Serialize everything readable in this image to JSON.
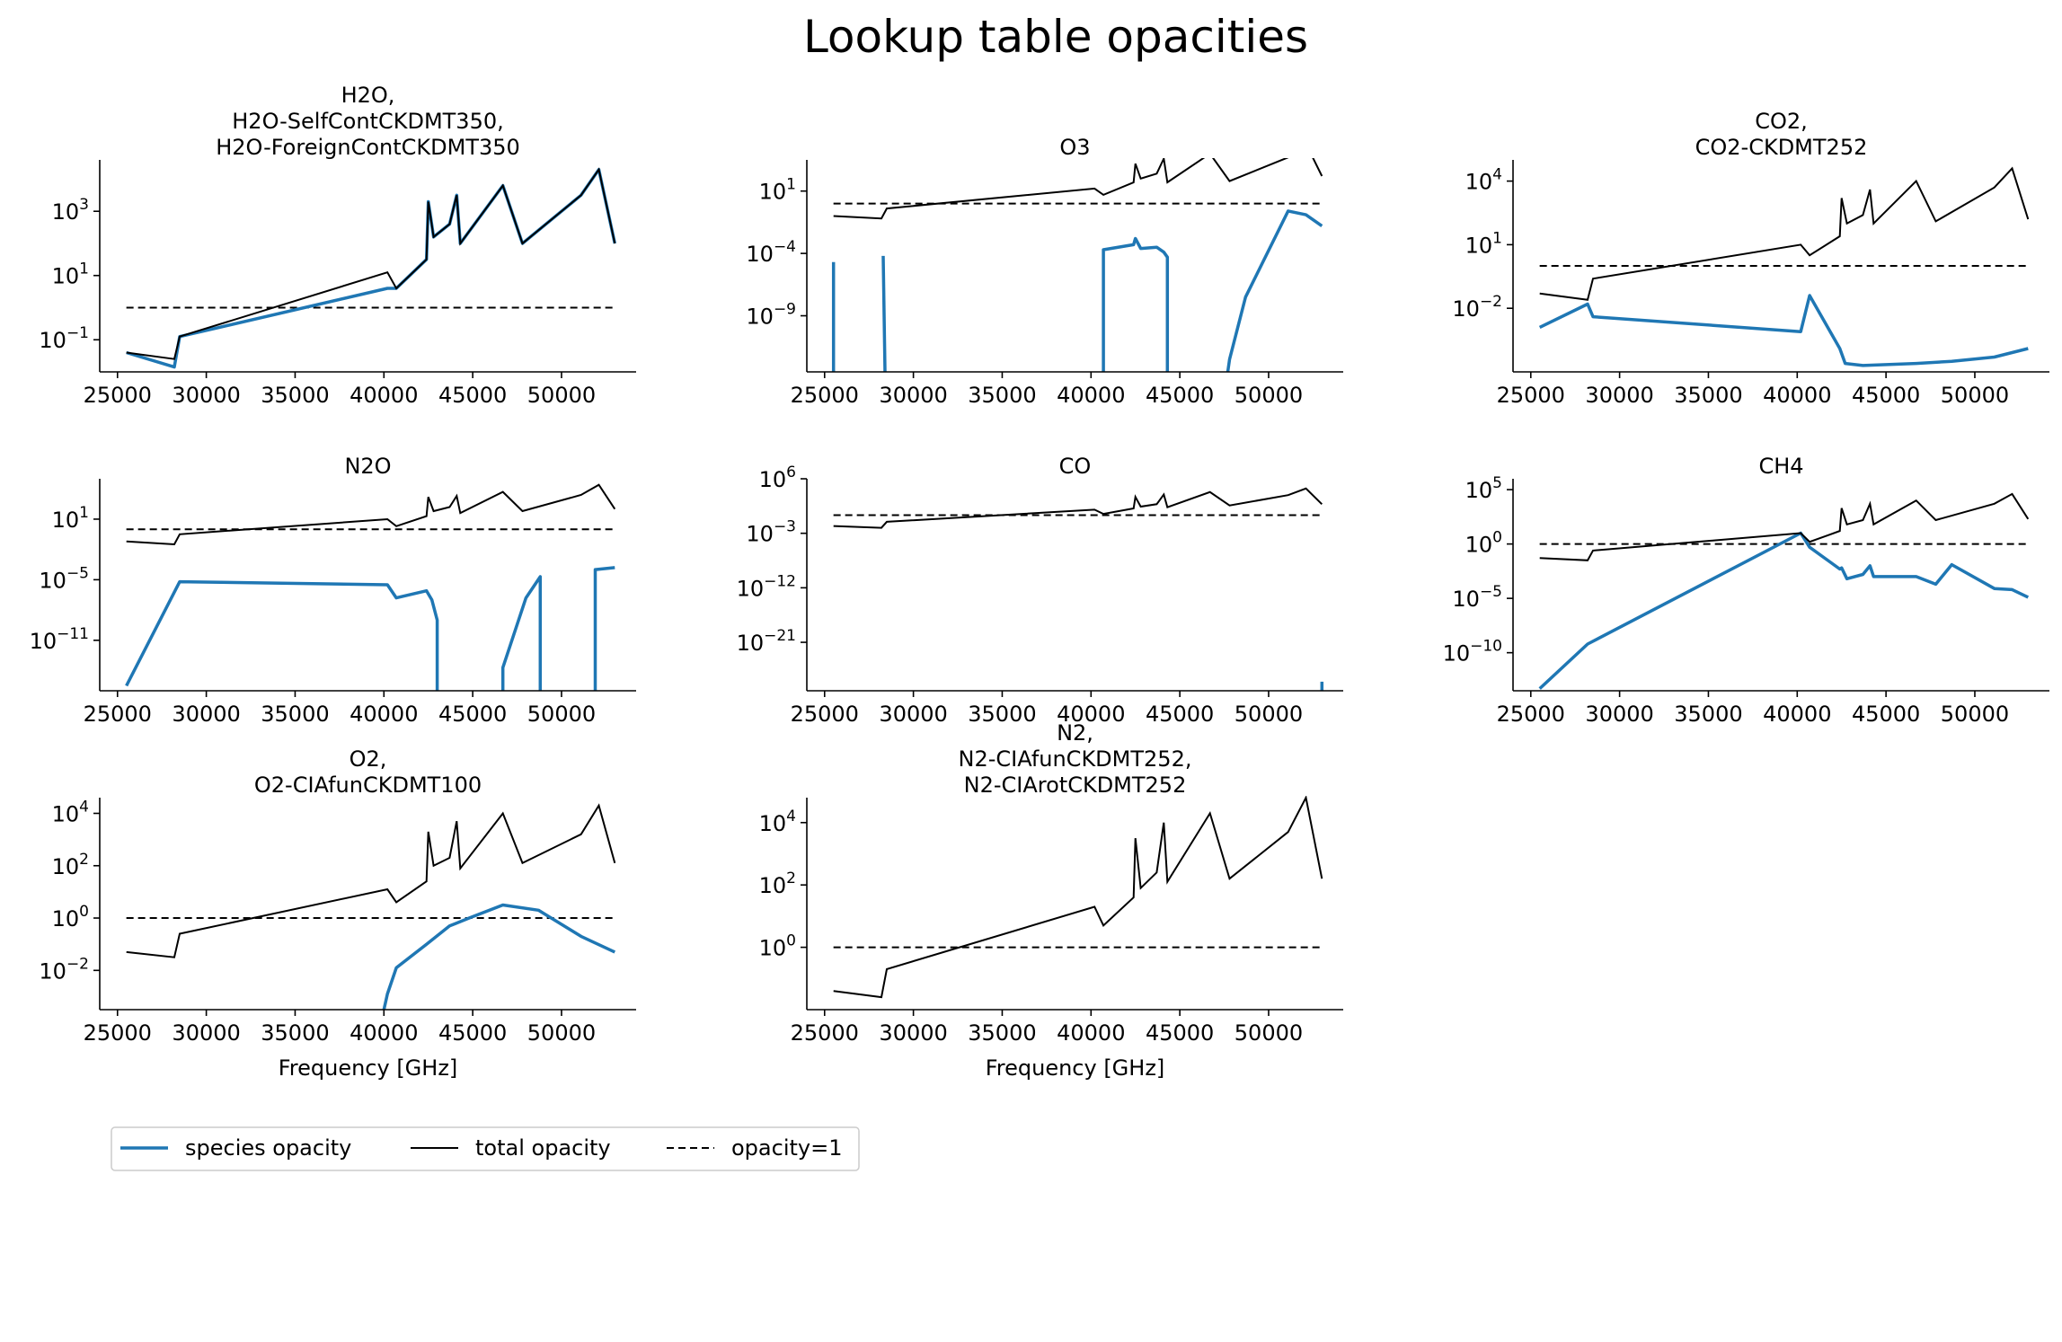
{
  "figure": {
    "title": "Lookup table opacities"
  },
  "legend": {
    "placement": "below-left",
    "entries": [
      {
        "label": "species opacity",
        "color": "#1f77b4",
        "style": "solid-thick"
      },
      {
        "label": "total opacity",
        "color": "#000000",
        "style": "solid"
      },
      {
        "label": "opacity=1",
        "color": "#000000",
        "style": "dashed"
      }
    ]
  },
  "colors": {
    "species": "#1f77b4",
    "total": "#000000",
    "reference": "#000000"
  },
  "chart_data": [
    {
      "type": "line",
      "title_lines": [
        "H2O,",
        "H2O-SelfContCKDMT350,",
        "H2O-ForeignContCKDMT350"
      ],
      "xlabel": "",
      "yscale": "log",
      "xlim": [
        24000,
        54200
      ],
      "ylim": [
        -2.0,
        4.6
      ],
      "xticks": [
        25000,
        30000,
        35000,
        40000,
        45000,
        50000
      ],
      "yticks": [
        {
          "e": -1,
          "label": "10^-1"
        },
        {
          "e": 1,
          "label": "10^1"
        },
        {
          "e": 3,
          "label": "10^3"
        }
      ],
      "total_opacity_log10": [
        [
          25500,
          -1.4
        ],
        [
          28200,
          -1.6
        ],
        [
          28500,
          -0.9
        ],
        [
          40200,
          1.1
        ],
        [
          40700,
          0.6
        ],
        [
          42400,
          1.5
        ],
        [
          42500,
          3.3
        ],
        [
          42800,
          2.2
        ],
        [
          43700,
          2.6
        ],
        [
          44100,
          3.5
        ],
        [
          44300,
          2.0
        ],
        [
          46700,
          3.8
        ],
        [
          47800,
          2.0
        ],
        [
          51100,
          3.5
        ],
        [
          52100,
          4.3
        ],
        [
          53000,
          2.0
        ]
      ],
      "species_opacity_log10": [
        [
          25500,
          -1.4
        ],
        [
          28200,
          -1.85
        ],
        [
          28500,
          -0.9
        ],
        [
          40200,
          0.6
        ],
        [
          40700,
          0.6
        ],
        [
          42400,
          1.5
        ],
        [
          42500,
          3.3
        ],
        [
          42800,
          2.2
        ],
        [
          43700,
          2.6
        ],
        [
          44100,
          3.5
        ],
        [
          44300,
          2.0
        ],
        [
          46700,
          3.8
        ],
        [
          47800,
          2.0
        ],
        [
          51100,
          3.5
        ],
        [
          52100,
          4.3
        ],
        [
          53000,
          2.0
        ]
      ],
      "reference_opacity": 1
    },
    {
      "type": "line",
      "title_lines": [
        "O3"
      ],
      "xlabel": "",
      "yscale": "log",
      "xlim": [
        24000,
        54200
      ],
      "ylim": [
        -13.5,
        3.5
      ],
      "xticks": [
        25000,
        30000,
        35000,
        40000,
        45000,
        50000
      ],
      "yticks": [
        {
          "e": -9,
          "label": "10^-9"
        },
        {
          "e": -4,
          "label": "10^-4"
        },
        {
          "e": 1,
          "label": "10^1"
        }
      ],
      "total_opacity_log10": [
        [
          25500,
          -1.0
        ],
        [
          28200,
          -1.2
        ],
        [
          28500,
          -0.4
        ],
        [
          40200,
          1.2
        ],
        [
          40700,
          0.7
        ],
        [
          42400,
          1.7
        ],
        [
          42500,
          3.2
        ],
        [
          42800,
          2.0
        ],
        [
          43700,
          2.4
        ],
        [
          44100,
          3.6
        ],
        [
          44300,
          1.7
        ],
        [
          46700,
          4.0
        ],
        [
          47800,
          1.8
        ],
        [
          51100,
          3.7
        ],
        [
          52100,
          4.8
        ],
        [
          53000,
          2.2
        ]
      ],
      "species_opacity_log10_segments": [
        [
          [
            25500,
            -13.5
          ],
          [
            25500,
            -4.7
          ]
        ],
        [
          [
            28300,
            -4.2
          ],
          [
            28400,
            -13.5
          ]
        ],
        [
          [
            40700,
            -13.5
          ],
          [
            40700,
            -3.7
          ],
          [
            42400,
            -3.3
          ],
          [
            42500,
            -2.8
          ],
          [
            42800,
            -3.6
          ],
          [
            43700,
            -3.5
          ],
          [
            44100,
            -3.9
          ],
          [
            44300,
            -4.3
          ],
          [
            44300,
            -13.5
          ]
        ],
        [
          [
            47700,
            -13.5
          ],
          [
            47800,
            -12.5
          ],
          [
            48700,
            -7.5
          ],
          [
            51100,
            -0.6
          ],
          [
            52100,
            -0.9
          ],
          [
            53000,
            -1.8
          ]
        ]
      ],
      "reference_opacity": 1
    },
    {
      "type": "line",
      "title_lines": [
        "CO2,",
        "CO2-CKDMT252"
      ],
      "xlabel": "",
      "yscale": "log",
      "xlim": [
        24000,
        54200
      ],
      "ylim": [
        -5.0,
        5.0
      ],
      "xticks": [
        25000,
        30000,
        35000,
        40000,
        45000,
        50000
      ],
      "yticks": [
        {
          "e": -2,
          "label": "10^-2"
        },
        {
          "e": 1,
          "label": "10^1"
        },
        {
          "e": 4,
          "label": "10^4"
        }
      ],
      "total_opacity_log10": [
        [
          25500,
          -1.3
        ],
        [
          28200,
          -1.6
        ],
        [
          28500,
          -0.6
        ],
        [
          40200,
          1.0
        ],
        [
          40700,
          0.5
        ],
        [
          42400,
          1.4
        ],
        [
          42500,
          3.2
        ],
        [
          42800,
          2.0
        ],
        [
          43700,
          2.4
        ],
        [
          44100,
          3.6
        ],
        [
          44300,
          2.0
        ],
        [
          46700,
          4.0
        ],
        [
          47800,
          2.1
        ],
        [
          51100,
          3.7
        ],
        [
          52100,
          4.6
        ],
        [
          53000,
          2.2
        ]
      ],
      "species_opacity_log10": [
        [
          25500,
          -2.9
        ],
        [
          28200,
          -1.8
        ],
        [
          28500,
          -2.4
        ],
        [
          40200,
          -3.1
        ],
        [
          40700,
          -1.4
        ],
        [
          42400,
          -3.9
        ],
        [
          42700,
          -4.6
        ],
        [
          43700,
          -4.7
        ],
        [
          46700,
          -4.6
        ],
        [
          48700,
          -4.5
        ],
        [
          51100,
          -4.3
        ],
        [
          53000,
          -3.9
        ]
      ],
      "reference_opacity": 1
    },
    {
      "type": "line",
      "title_lines": [
        "N2O"
      ],
      "xlabel": "",
      "yscale": "log",
      "xlim": [
        24000,
        54200
      ],
      "ylim": [
        -16.0,
        5.0
      ],
      "xticks": [
        25000,
        30000,
        35000,
        40000,
        45000,
        50000
      ],
      "yticks": [
        {
          "e": -11,
          "label": "10^-11"
        },
        {
          "e": -5,
          "label": "10^-5"
        },
        {
          "e": 1,
          "label": "10^1"
        }
      ],
      "total_opacity_log10": [
        [
          25500,
          -1.2
        ],
        [
          28200,
          -1.5
        ],
        [
          28500,
          -0.5
        ],
        [
          40200,
          1.0
        ],
        [
          40700,
          0.3
        ],
        [
          42400,
          1.3
        ],
        [
          42500,
          3.2
        ],
        [
          42800,
          1.8
        ],
        [
          43700,
          2.2
        ],
        [
          44100,
          3.3
        ],
        [
          44300,
          1.6
        ],
        [
          46700,
          3.7
        ],
        [
          47800,
          1.8
        ],
        [
          51100,
          3.4
        ],
        [
          52100,
          4.4
        ],
        [
          53000,
          2.0
        ]
      ],
      "species_opacity_log10_segments": [
        [
          [
            25500,
            -15.5
          ],
          [
            28500,
            -5.2
          ],
          [
            40200,
            -5.5
          ],
          [
            40700,
            -6.8
          ],
          [
            42400,
            -6.1
          ],
          [
            42700,
            -7.0
          ],
          [
            43000,
            -9.0
          ],
          [
            43000,
            -16.0
          ]
        ],
        [
          [
            46700,
            -16.0
          ],
          [
            46700,
            -13.7
          ],
          [
            48000,
            -6.8
          ],
          [
            48800,
            -4.7
          ],
          [
            48800,
            -16.0
          ]
        ],
        [
          [
            51900,
            -16.0
          ],
          [
            51900,
            -4.0
          ],
          [
            53000,
            -3.8
          ]
        ]
      ],
      "reference_opacity": 1
    },
    {
      "type": "line",
      "title_lines": [
        "CO"
      ],
      "xlabel": "",
      "yscale": "log",
      "xlim": [
        24000,
        54200
      ],
      "ylim": [
        -29.0,
        6.0
      ],
      "xticks": [
        25000,
        30000,
        35000,
        40000,
        45000,
        50000
      ],
      "yticks": [
        {
          "e": -21,
          "label": "10^-21"
        },
        {
          "e": -12,
          "label": "10^-12"
        },
        {
          "e": -3,
          "label": "10^-3"
        },
        {
          "e": 6,
          "label": "10^6"
        }
      ],
      "total_opacity_log10": [
        [
          25500,
          -1.8
        ],
        [
          28200,
          -2.1
        ],
        [
          28500,
          -1.1
        ],
        [
          40200,
          0.9
        ],
        [
          40700,
          0.2
        ],
        [
          42400,
          1.1
        ],
        [
          42500,
          3.0
        ],
        [
          42800,
          1.4
        ],
        [
          43700,
          1.8
        ],
        [
          44100,
          3.4
        ],
        [
          44300,
          1.3
        ],
        [
          46700,
          3.8
        ],
        [
          47800,
          1.6
        ],
        [
          51100,
          3.3
        ],
        [
          52100,
          4.4
        ],
        [
          53000,
          1.8
        ]
      ],
      "species_opacity_log10_segments": [
        [
          [
            53000,
            -29.0
          ],
          [
            53000,
            -27.5
          ]
        ]
      ],
      "reference_opacity": 1
    },
    {
      "type": "line",
      "title_lines": [
        "CH4"
      ],
      "xlabel": "",
      "yscale": "log",
      "xlim": [
        24000,
        54200
      ],
      "ylim": [
        -13.5,
        6.0
      ],
      "xticks": [
        25000,
        30000,
        35000,
        40000,
        45000,
        50000
      ],
      "yticks": [
        {
          "e": -10,
          "label": "10^-10"
        },
        {
          "e": -5,
          "label": "10^-5"
        },
        {
          "e": 0,
          "label": "10^0"
        },
        {
          "e": 5,
          "label": "10^5"
        }
      ],
      "total_opacity_log10": [
        [
          25500,
          -1.3
        ],
        [
          28200,
          -1.5
        ],
        [
          28500,
          -0.6
        ],
        [
          40200,
          1.0
        ],
        [
          40700,
          0.2
        ],
        [
          42400,
          1.2
        ],
        [
          42500,
          3.3
        ],
        [
          42800,
          1.8
        ],
        [
          43700,
          2.2
        ],
        [
          44100,
          3.7
        ],
        [
          44300,
          1.8
        ],
        [
          46700,
          4.0
        ],
        [
          47800,
          2.2
        ],
        [
          51100,
          3.7
        ],
        [
          52100,
          4.6
        ],
        [
          53000,
          2.3
        ]
      ],
      "species_opacity_log10": [
        [
          25500,
          -13.3
        ],
        [
          28200,
          -9.2
        ],
        [
          40200,
          1.0
        ],
        [
          40700,
          -0.3
        ],
        [
          42400,
          -2.3
        ],
        [
          42500,
          -2.2
        ],
        [
          42800,
          -3.2
        ],
        [
          43700,
          -2.8
        ],
        [
          44100,
          -2.0
        ],
        [
          44300,
          -3.0
        ],
        [
          46700,
          -3.0
        ],
        [
          47800,
          -3.7
        ],
        [
          48700,
          -1.9
        ],
        [
          51100,
          -4.1
        ],
        [
          52100,
          -4.2
        ],
        [
          53000,
          -4.9
        ]
      ],
      "reference_opacity": 1
    },
    {
      "type": "line",
      "title_lines": [
        "O2,",
        "O2-CIAfunCKDMT100"
      ],
      "xlabel": "Frequency [GHz]",
      "yscale": "log",
      "xlim": [
        24000,
        54200
      ],
      "ylim": [
        -3.5,
        4.6
      ],
      "xticks": [
        25000,
        30000,
        35000,
        40000,
        45000,
        50000
      ],
      "yticks": [
        {
          "e": -2,
          "label": "10^-2"
        },
        {
          "e": 0,
          "label": "10^0"
        },
        {
          "e": 2,
          "label": "10^2"
        },
        {
          "e": 4,
          "label": "10^4"
        }
      ],
      "total_opacity_log10": [
        [
          25500,
          -1.3
        ],
        [
          28200,
          -1.5
        ],
        [
          28500,
          -0.6
        ],
        [
          40200,
          1.1
        ],
        [
          40700,
          0.6
        ],
        [
          42400,
          1.4
        ],
        [
          42500,
          3.3
        ],
        [
          42800,
          2.0
        ],
        [
          43700,
          2.3
        ],
        [
          44100,
          3.7
        ],
        [
          44300,
          1.9
        ],
        [
          46700,
          4.0
        ],
        [
          47800,
          2.1
        ],
        [
          51100,
          3.2
        ],
        [
          52100,
          4.3
        ],
        [
          53000,
          2.1
        ]
      ],
      "species_opacity_log10_segments": [
        [
          [
            40000,
            -3.5
          ],
          [
            40200,
            -2.9
          ],
          [
            40700,
            -1.9
          ],
          [
            42400,
            -1.0
          ],
          [
            43700,
            -0.3
          ],
          [
            44800,
            0.0
          ],
          [
            46700,
            0.5
          ],
          [
            48700,
            0.3
          ],
          [
            51100,
            -0.7
          ],
          [
            53000,
            -1.3
          ]
        ]
      ],
      "reference_opacity": 1
    },
    {
      "type": "line",
      "title_lines": [
        "N2,",
        "N2-CIAfunCKDMT252,",
        "N2-CIArotCKDMT252"
      ],
      "xlabel": "Frequency [GHz]",
      "yscale": "log",
      "xlim": [
        24000,
        54200
      ],
      "ylim": [
        -2.0,
        4.8
      ],
      "xticks": [
        25000,
        30000,
        35000,
        40000,
        45000,
        50000
      ],
      "yticks": [
        {
          "e": 0,
          "label": "10^0"
        },
        {
          "e": 2,
          "label": "10^2"
        },
        {
          "e": 4,
          "label": "10^4"
        }
      ],
      "total_opacity_log10": [
        [
          25500,
          -1.4
        ],
        [
          28200,
          -1.6
        ],
        [
          28500,
          -0.7
        ],
        [
          40200,
          1.3
        ],
        [
          40700,
          0.7
        ],
        [
          42400,
          1.6
        ],
        [
          42500,
          3.5
        ],
        [
          42800,
          1.9
        ],
        [
          43700,
          2.4
        ],
        [
          44100,
          4.0
        ],
        [
          44300,
          2.1
        ],
        [
          46700,
          4.3
        ],
        [
          47800,
          2.2
        ],
        [
          51100,
          3.7
        ],
        [
          52100,
          4.8
        ],
        [
          53000,
          2.2
        ]
      ],
      "species_opacity_log10_segments": [],
      "reference_opacity": 1
    }
  ]
}
